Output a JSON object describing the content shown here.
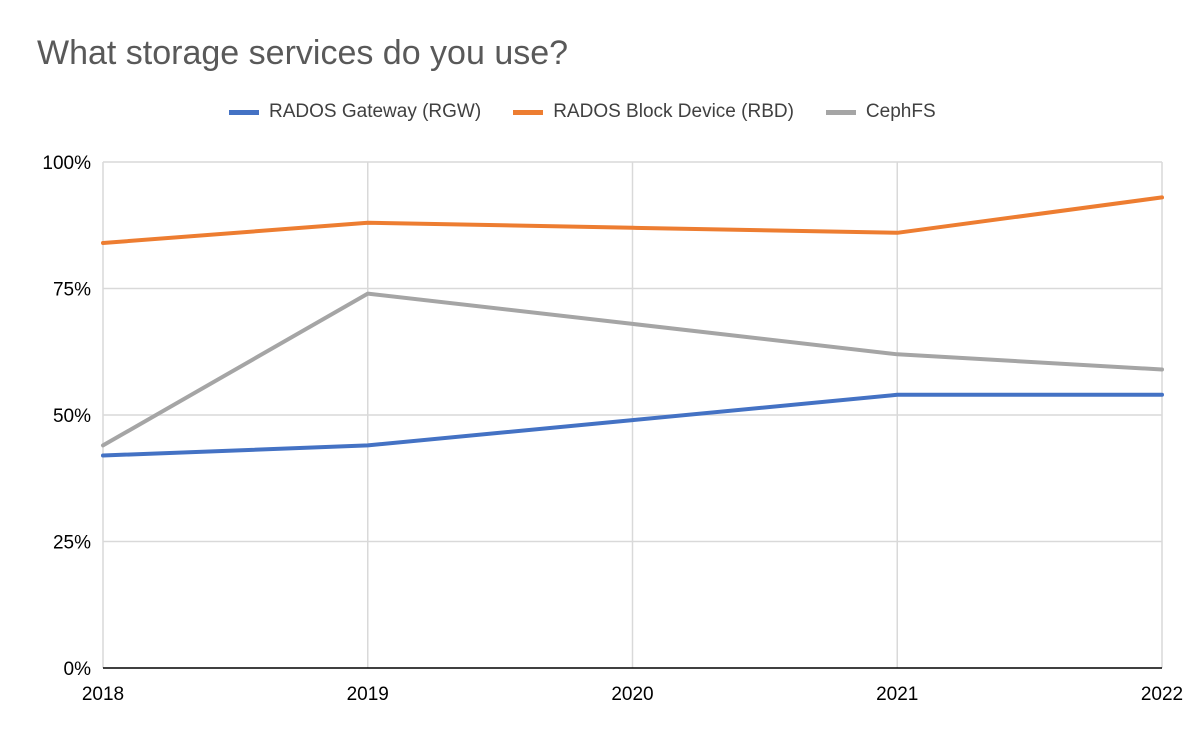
{
  "chart_data": {
    "type": "line",
    "title": "What storage services do you use?",
    "categories": [
      "2018",
      "2019",
      "2020",
      "2021",
      "2022"
    ],
    "y_ticks": [
      "0%",
      "25%",
      "50%",
      "75%",
      "100%"
    ],
    "ylim": [
      0,
      100
    ],
    "grid": true,
    "legend_position": "top-center",
    "series": [
      {
        "name": "RADOS Gateway (RGW)",
        "color": "#4472c4",
        "values": [
          42,
          44,
          49,
          54,
          54
        ]
      },
      {
        "name": "RADOS Block Device (RBD)",
        "color": "#ed7d31",
        "values": [
          84,
          88,
          87,
          86,
          93
        ]
      },
      {
        "name": "CephFS",
        "color": "#a5a5a5",
        "values": [
          44,
          74,
          68,
          62,
          59
        ]
      }
    ]
  }
}
